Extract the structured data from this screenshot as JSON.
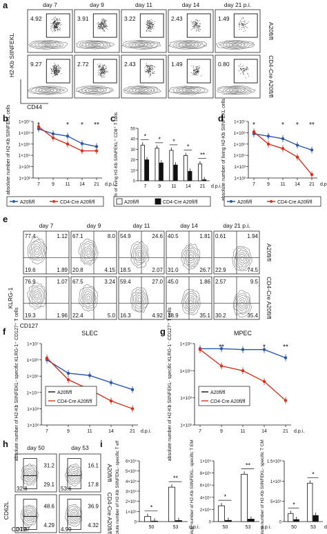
{
  "panel_letters": [
    "a",
    "b",
    "c",
    "d",
    "e",
    "f",
    "g",
    "h",
    "i"
  ],
  "panel_a": {
    "days": [
      "day 7",
      "day 9",
      "day 11",
      "day 14",
      "day 21 p.i."
    ],
    "row1_values": [
      "4.92",
      "3.91",
      "3.22",
      "2.43",
      "1.49"
    ],
    "row2_values": [
      "9.27",
      "2.72",
      "2.43",
      "1.49",
      "0.80"
    ],
    "row1_label": "A20fl/fl",
    "row2_label": "CD4-Cre A20fl/fl",
    "y_axis": "H2-Kb SIINFEKL",
    "x_axis": "CD44"
  },
  "panel_e": {
    "days": [
      "day 7",
      "day 9",
      "day 11",
      "day 14",
      "day 21 p.i."
    ],
    "row1": [
      [
        "77.4",
        "1.12",
        "19.6",
        "1.89"
      ],
      [
        "67.1",
        "8.0",
        "20.8",
        "4.15"
      ],
      [
        "54.9",
        "24.6",
        "18.5",
        "2.07"
      ],
      [
        "40.5",
        "1.81",
        "31.0",
        "26.7"
      ],
      [
        "0.61",
        "1.94",
        "22.9",
        "74.5"
      ]
    ],
    "row2": [
      [
        "76.9",
        "1.07",
        "19.3",
        "1.96"
      ],
      [
        "67.5",
        "3.24",
        "22.4",
        "5.0"
      ],
      [
        "59.4",
        "27.0",
        "16.3",
        "4.92"
      ],
      [
        "45.0",
        "1.86",
        "18.9",
        "35.1"
      ],
      [
        "2.57",
        "9.5",
        "30.2",
        "35.4"
      ]
    ],
    "row1_label": "A20fl/fl",
    "row2_label": "CD4-Cre A20fl/fl",
    "y_axis": "KLRG-1",
    "x_axis": "CD127"
  },
  "panel_h": {
    "days": [
      "day 50",
      "day 53"
    ],
    "row1": [
      [
        "31.2",
        "29.1",
        "32.8"
      ],
      [
        "16.1",
        "17.8",
        "53.6"
      ]
    ],
    "row2": [
      [
        "48.6",
        "4.29",
        "37.9"
      ],
      [
        "36.9",
        "4.32",
        "4.99"
      ]
    ],
    "row1_label": "A20fl/fl",
    "row2_label": "CD4-Cre A20fl/fl",
    "y_axis": "CD62L",
    "x_axis": "CD127"
  },
  "legend": {
    "wt": "A20fl/fl",
    "ko": "CD4-Cre A20fl/fl"
  },
  "colors": {
    "wt": "#2a56b0",
    "ko": "#d9301e",
    "bar_wt": "#ffffff",
    "bar_ko": "#111111"
  },
  "chart_data": [
    {
      "panel": "b",
      "type": "line",
      "ylabel": "absolute number of H2-Kb SIINFEKL cells",
      "x": [
        7,
        9,
        11,
        14,
        21
      ],
      "xticks": [
        "7",
        "9",
        "11",
        "14",
        "21"
      ],
      "x_unit": "d.p.i.",
      "ylim": [
        100,
        10000000
      ],
      "yscale": "log",
      "yticks": [
        "1×10²",
        "1×10³",
        "1×10⁴",
        "1×10⁵",
        "1×10⁶",
        "1×10⁷"
      ],
      "series": [
        {
          "name": "A20fl/fl",
          "values": [
            2200000,
            800000,
            500000,
            110000,
            60000
          ]
        },
        {
          "name": "CD4-Cre A20fl/fl",
          "values": [
            3500000,
            350000,
            100000,
            25000,
            25000
          ]
        }
      ],
      "significance": [
        "*",
        "",
        "*",
        "*",
        "**"
      ]
    },
    {
      "panel": "c",
      "type": "bar",
      "ylabel": "% of living H2-Kb SIINFEKL⁺ CD8⁺ T cells",
      "categories": [
        "7",
        "9",
        "11",
        "14",
        "21"
      ],
      "x_unit": "d.p.i.",
      "ylim": [
        0,
        50
      ],
      "yticks": [
        "0",
        "10",
        "20",
        "30",
        "40",
        "50"
      ],
      "series": [
        {
          "name": "A20fl/fl",
          "values": [
            34,
            31,
            29,
            24,
            16
          ]
        },
        {
          "name": "CD4-Cre A20fl/fl",
          "values": [
            20,
            17,
            15,
            9,
            1
          ]
        }
      ],
      "significance": [
        "*",
        "*",
        "*",
        "*",
        "**"
      ]
    },
    {
      "panel": "d",
      "type": "line",
      "ylabel": "absolute number of living H2-Kb SIINFEKL cells",
      "x": [
        7,
        9,
        11,
        14,
        21
      ],
      "xticks": [
        "7",
        "9",
        "11",
        "14",
        "21"
      ],
      "x_unit": "d.p.i.",
      "ylim": [
        100,
        10000000
      ],
      "yscale": "log",
      "yticks": [
        "1×10²",
        "1×10³",
        "1×10⁴",
        "1×10⁵",
        "1×10⁶",
        "1×10⁷"
      ],
      "series": [
        {
          "name": "A20fl/fl",
          "values": [
            800000,
            500000,
            300000,
            80000,
            30000
          ]
        },
        {
          "name": "CD4-Cre A20fl/fl",
          "values": [
            1200000,
            100000,
            40000,
            7000,
            200
          ]
        }
      ],
      "significance": [
        "*",
        "",
        "*",
        "*",
        "**"
      ]
    },
    {
      "panel": "f",
      "type": "line",
      "title": "SLEC",
      "ylabel": "absolute number of H2-Kb SIINFEKL- specific KLRG-1⁺ CD127⁺ T cells",
      "x": [
        7,
        9,
        11,
        14,
        21
      ],
      "xticks": [
        "7",
        "9",
        "11",
        "14",
        "21"
      ],
      "x_unit": "d.p.i.",
      "ylim": [
        100,
        10000000
      ],
      "yscale": "log",
      "yticks": [
        "1×10²",
        "1×10³",
        "1×10⁴",
        "1×10⁵",
        "1×10⁶",
        "1×10⁷"
      ],
      "series": [
        {
          "name": "A20fl/fl",
          "values": [
            1000000,
            150000,
            110000,
            40000,
            15000
          ]
        },
        {
          "name": "CD4-Cre A20fl/fl",
          "values": [
            1300000,
            60000,
            15000,
            3000,
            1000
          ]
        }
      ]
    },
    {
      "panel": "g",
      "type": "line",
      "title": "MPEC",
      "ylabel": "absolute number of H2-Kb SIINFEKL- specific KLRG-1⁻ CD127⁺ T cells",
      "x": [
        7,
        9,
        11,
        14,
        21
      ],
      "xticks": [
        "7",
        "9",
        "11",
        "14",
        "21"
      ],
      "x_unit": "d.p.i.",
      "ylim": [
        100,
        100000
      ],
      "yscale": "log",
      "yticks": [
        "1×10²",
        "1×10³",
        "1×10⁴",
        "1×10⁵"
      ],
      "series": [
        {
          "name": "A20fl/fl",
          "values": [
            65000,
            65000,
            60000,
            60000,
            30000
          ]
        },
        {
          "name": "CD4-Cre A20fl/fl",
          "values": [
            60000,
            15000,
            10000,
            4000,
            800
          ]
        }
      ],
      "significance": [
        "",
        "**",
        "",
        "*",
        "**"
      ]
    },
    {
      "panel": "i1",
      "type": "bar",
      "ylabel": "absolute number of H2-Kb SIINFEKL- specific T eff",
      "categories": [
        "50",
        "53"
      ],
      "x_unit": "d.p.i.",
      "ylim": [
        0,
        600000
      ],
      "yticks": [
        "0",
        "1×10⁵",
        "2×10⁵",
        "3×10⁵",
        "4×10⁵",
        "5×10⁵",
        "6×10⁵"
      ],
      "series": [
        {
          "name": "A20fl/fl",
          "values": [
            50000,
            340000
          ]
        },
        {
          "name": "CD4-Cre A20fl/fl",
          "values": [
            5000,
            10000
          ]
        }
      ],
      "significance": [
        "*",
        "**"
      ]
    },
    {
      "panel": "i2",
      "type": "bar",
      "ylabel": "absolute number of H2-Kb SIINFEKL- specific T EM",
      "categories": [
        "50",
        "53"
      ],
      "x_unit": "d.p.i.",
      "ylim": [
        0,
        100000
      ],
      "yticks": [
        "0",
        "2×10⁴",
        "4×10⁴",
        "6×10⁴",
        "8×10⁴",
        "1×10⁵"
      ],
      "series": [
        {
          "name": "A20fl/fl",
          "values": [
            26000,
            78000
          ]
        },
        {
          "name": "CD4-Cre A20fl/fl",
          "values": [
            2000,
            4000
          ]
        }
      ],
      "significance": [
        "*",
        "**"
      ]
    },
    {
      "panel": "i3",
      "type": "bar",
      "ylabel": "absolute number of H2-Kb SIINFEKL- specific T CM",
      "categories": [
        "50",
        "53"
      ],
      "x_unit": "d.p.i.",
      "ylim": [
        0,
        1500000
      ],
      "yticks": [
        "0",
        "5×10⁵",
        "1×10⁶",
        "1.5×10⁶"
      ],
      "series": [
        {
          "name": "A20fl/fl",
          "values": [
            200000,
            950000
          ]
        },
        {
          "name": "CD4-Cre A20fl/fl",
          "values": [
            50000,
            150000
          ]
        }
      ],
      "significance": [
        "*",
        "*"
      ]
    }
  ]
}
